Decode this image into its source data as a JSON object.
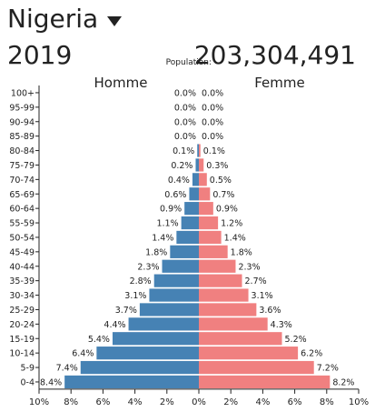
{
  "header": {
    "country": "Nigeria",
    "dropdown_icon": "caret-down-icon",
    "year": "2019",
    "population_label": "Population:",
    "population_value": "203,304,491"
  },
  "colors": {
    "male": "#4682b4",
    "female": "#f08080",
    "text": "#222222"
  },
  "chart_data": {
    "type": "bar",
    "orientation": "horizontal-butterfly",
    "categories": [
      "100+",
      "95-99",
      "90-94",
      "85-89",
      "80-84",
      "75-79",
      "70-74",
      "65-69",
      "60-64",
      "55-59",
      "50-54",
      "45-49",
      "40-44",
      "35-39",
      "30-34",
      "25-29",
      "20-24",
      "15-19",
      "10-14",
      "5-9",
      "0-4"
    ],
    "series": [
      {
        "name": "Homme",
        "values": [
          0.0,
          0.0,
          0.0,
          0.0,
          0.1,
          0.2,
          0.4,
          0.6,
          0.9,
          1.1,
          1.4,
          1.8,
          2.3,
          2.8,
          3.1,
          3.7,
          4.4,
          5.4,
          6.4,
          7.4,
          8.4
        ],
        "labels": [
          "0.0%",
          "0.0%",
          "0.0%",
          "0.0%",
          "0.1%",
          "0.2%",
          "0.4%",
          "0.6%",
          "0.9%",
          "1.1%",
          "1.4%",
          "1.8%",
          "2.3%",
          "2.8%",
          "3.1%",
          "3.7%",
          "4.4%",
          "5.4%",
          "6.4%",
          "7.4%",
          "8.4%"
        ]
      },
      {
        "name": "Femme",
        "values": [
          0.0,
          0.0,
          0.0,
          0.0,
          0.1,
          0.3,
          0.5,
          0.7,
          0.9,
          1.2,
          1.4,
          1.8,
          2.3,
          2.7,
          3.1,
          3.6,
          4.3,
          5.2,
          6.2,
          7.2,
          8.2
        ],
        "labels": [
          "0.0%",
          "0.0%",
          "0.0%",
          "0.0%",
          "0.1%",
          "0.3%",
          "0.5%",
          "0.7%",
          "0.9%",
          "1.2%",
          "1.4%",
          "1.8%",
          "2.3%",
          "2.7%",
          "3.1%",
          "3.6%",
          "4.3%",
          "5.2%",
          "6.2%",
          "7.2%",
          "8.2%"
        ]
      }
    ],
    "x_ticks": [
      "10%",
      "8%",
      "6%",
      "4%",
      "2%",
      "0%",
      "2%",
      "4%",
      "6%",
      "8%",
      "10%"
    ],
    "xlim": [
      -10,
      10
    ],
    "grid": false
  }
}
